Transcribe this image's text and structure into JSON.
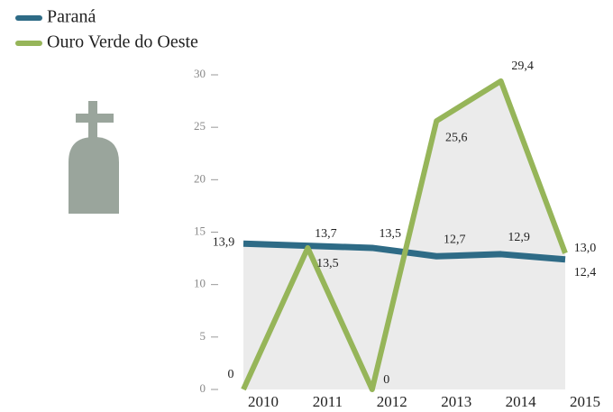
{
  "chart_data": {
    "type": "line",
    "categories": [
      "2010",
      "2011",
      "2012",
      "2013",
      "2014",
      "2015"
    ],
    "series": [
      {
        "name": "Paraná",
        "color": "#2e6b86",
        "values": [
          13.9,
          13.7,
          13.5,
          12.7,
          12.9,
          12.4
        ],
        "value_labels": [
          "13,9",
          "13,7",
          "13,5",
          "12,7",
          "12,9",
          "12,4"
        ]
      },
      {
        "name": "Ouro Verde do Oeste",
        "color": "#96b559",
        "values": [
          0,
          13.5,
          0,
          25.6,
          29.4,
          13.0
        ],
        "value_labels": [
          "0",
          "13,5",
          "0",
          "25,6",
          "29,4",
          "13,0"
        ]
      }
    ],
    "ylim": [
      0,
      30
    ],
    "yticks": [
      0,
      5,
      10,
      15,
      20,
      25,
      30
    ]
  }
}
